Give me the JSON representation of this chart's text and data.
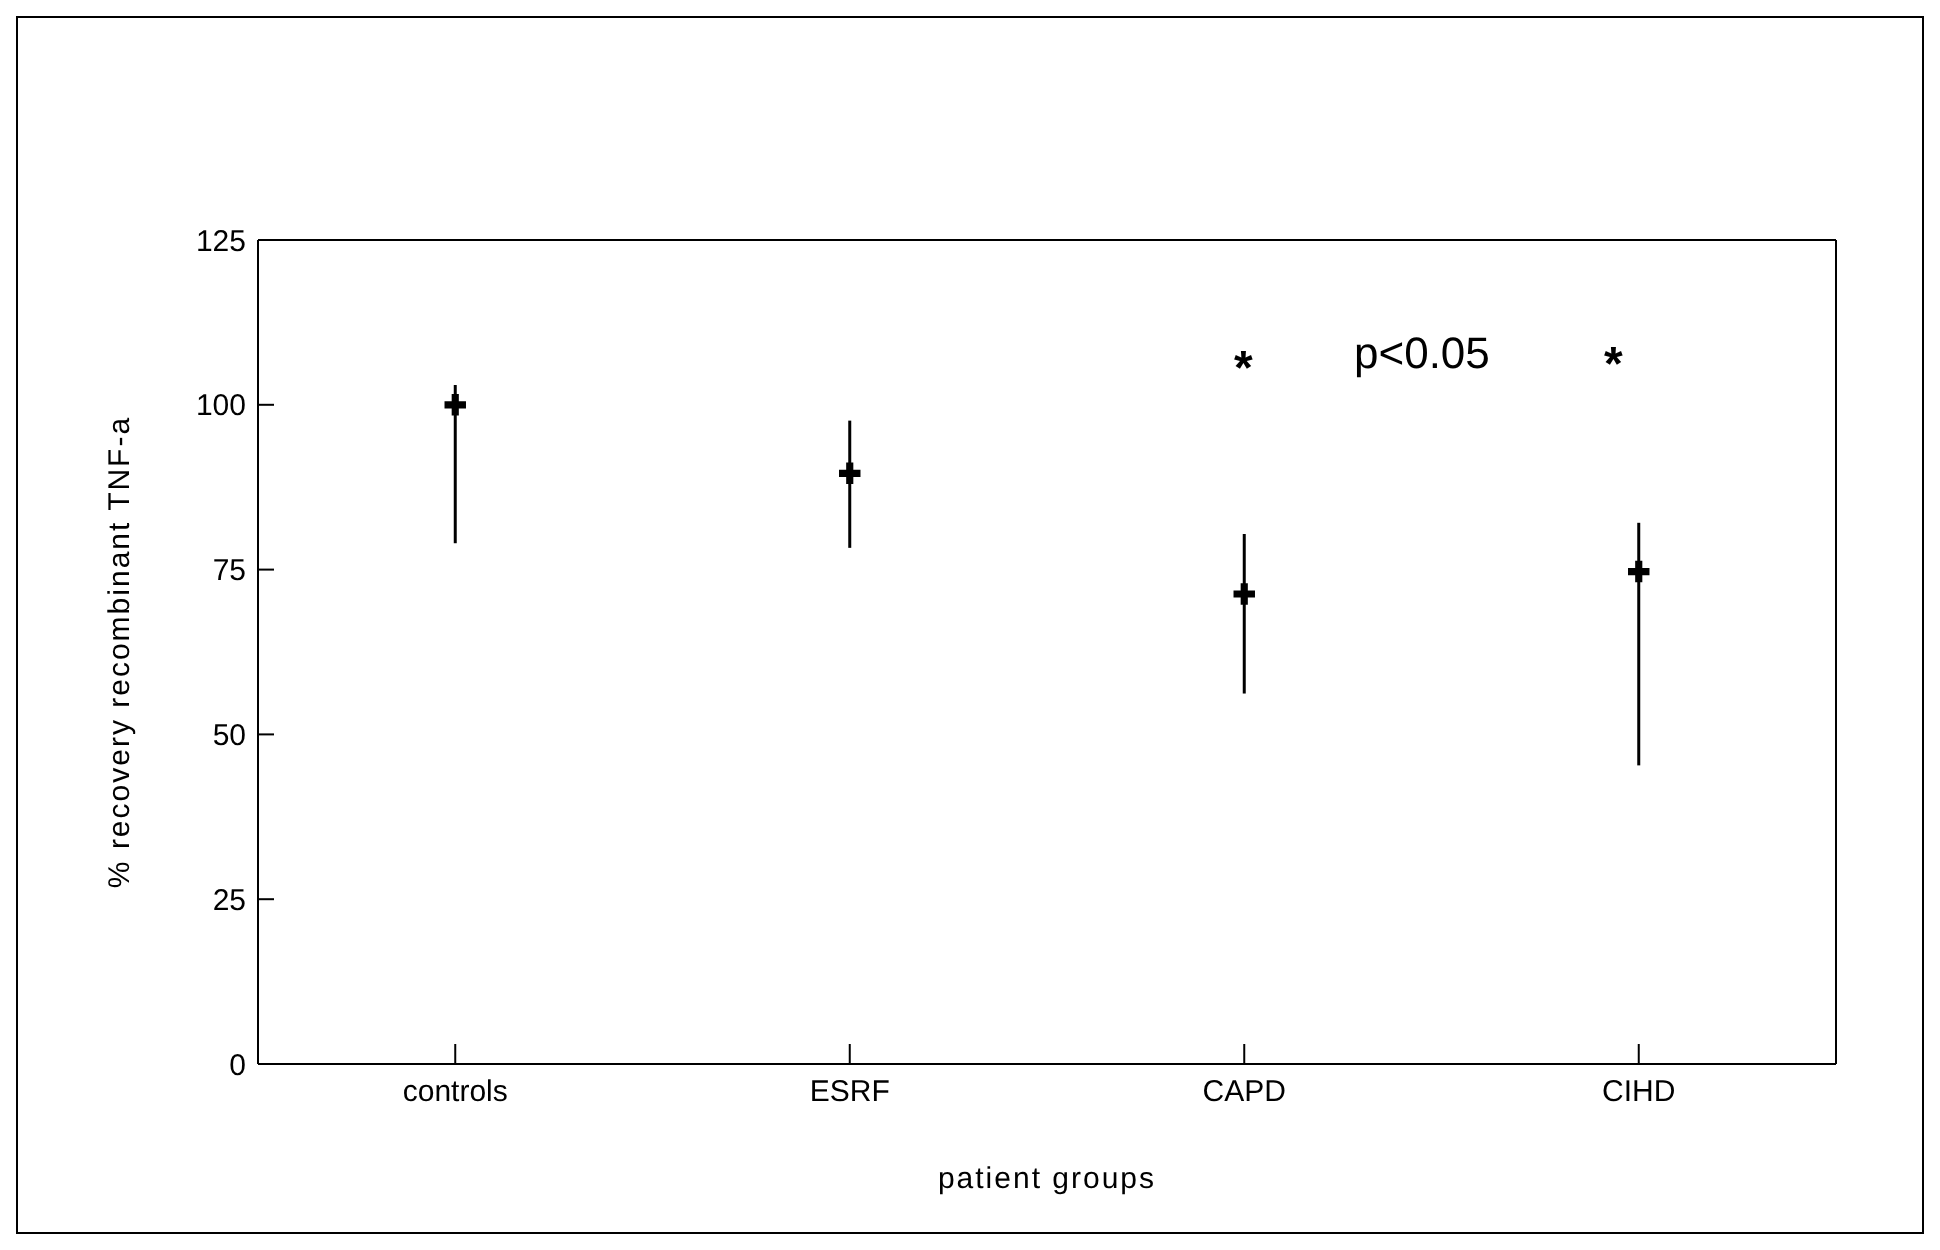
{
  "chart_data": {
    "type": "scatter",
    "xlabel": "patient groups",
    "ylabel": "% recovery recombinant TNF-a",
    "categories": [
      "controls",
      "ESRF",
      "CAPD",
      "CIHD"
    ],
    "series": [
      {
        "color": "#000000",
        "values": [
          100,
          89.6,
          71.3,
          74.7
        ],
        "errors": [
          [
            79,
            103
          ],
          [
            78.3,
            97.6
          ],
          [
            56.2,
            80.4
          ],
          [
            45.3,
            82.1
          ]
        ]
      }
    ],
    "ylim": [
      0,
      125
    ],
    "yticks": [
      0,
      25,
      50,
      75,
      100,
      125
    ],
    "marker": "cross",
    "grid": false,
    "legend": false,
    "annotations": [
      "*",
      "*",
      "p<0.05"
    ]
  }
}
